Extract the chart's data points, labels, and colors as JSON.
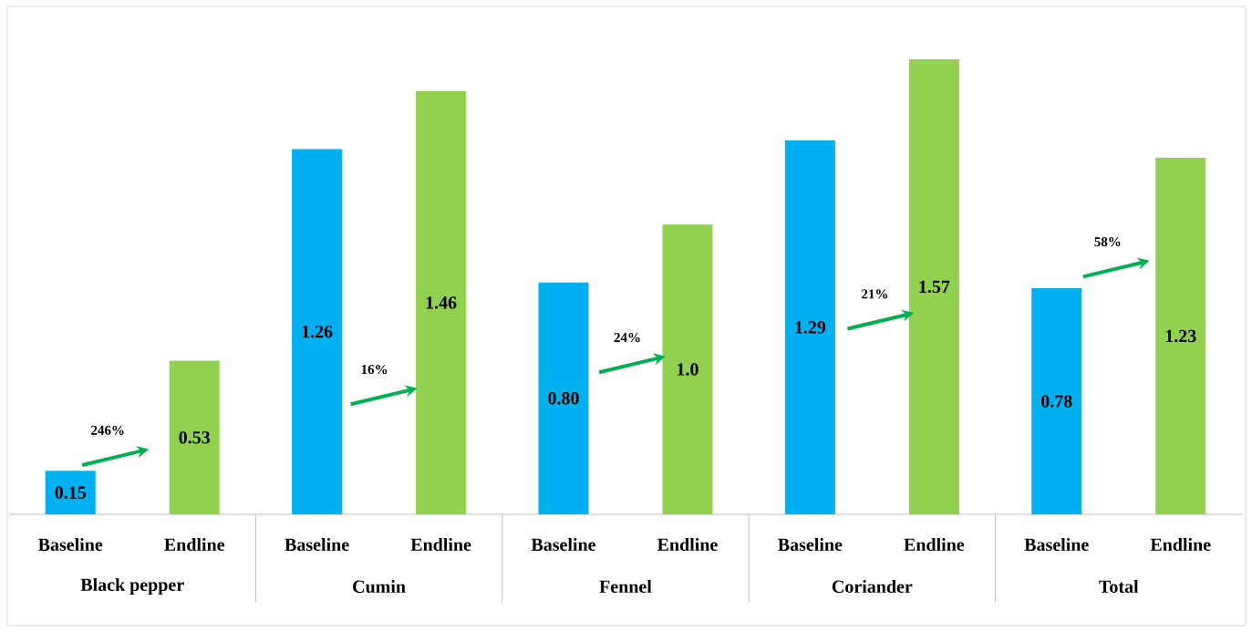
{
  "chart_data": {
    "type": "bar",
    "categories": [
      "Black pepper",
      "Cumin",
      "Fennel",
      "Coriander",
      "Total"
    ],
    "series": [
      {
        "name": "Baseline",
        "color": "#00b0f0",
        "values": [
          0.15,
          1.26,
          0.8,
          1.29,
          0.78
        ],
        "value_labels": [
          "0.15",
          "1.26",
          "0.80",
          "1.29",
          "0.78"
        ]
      },
      {
        "name": "Endline",
        "color": "#92d050",
        "values": [
          0.53,
          1.46,
          1.0,
          1.57,
          1.23
        ],
        "value_labels": [
          "0.53",
          "1.46",
          "1.0",
          "1.57",
          "1.23"
        ]
      }
    ],
    "annotations": [
      "246%",
      "16%",
      "24%",
      "21%",
      "58%"
    ]
  }
}
